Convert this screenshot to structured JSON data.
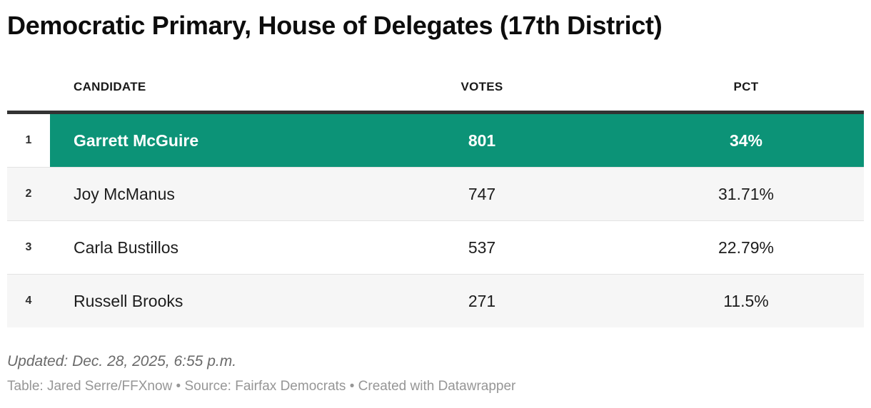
{
  "title": "Democratic Primary, House of Delegates (17th District)",
  "table": {
    "columns": [
      {
        "label": ""
      },
      {
        "label": "CANDIDATE"
      },
      {
        "label": "VOTES"
      },
      {
        "label": "PCT"
      }
    ],
    "rows": [
      {
        "rank": "1",
        "candidate": "Garrett McGuire",
        "votes": "801",
        "pct": "34%",
        "highlight": true
      },
      {
        "rank": "2",
        "candidate": "Joy McManus",
        "votes": "747",
        "pct": "31.71%",
        "highlight": false
      },
      {
        "rank": "3",
        "candidate": "Carla Bustillos",
        "votes": "537",
        "pct": "22.79%",
        "highlight": false
      },
      {
        "rank": "4",
        "candidate": "Russell Brooks",
        "votes": "271",
        "pct": "11.5%",
        "highlight": false
      }
    ]
  },
  "footer": {
    "updated": "Updated: Dec. 28, 2025, 6:55 p.m.",
    "attribution": "Table: Jared Serre/FFXnow • Source: Fairfax Democrats • Created with Datawrapper"
  },
  "colors": {
    "highlight": "#0c9377",
    "header_border": "#333333",
    "stripe": "#f6f6f6",
    "divider": "#e3e3e3",
    "title_text": "#0d0d0d",
    "body_text": "#1d1d1d",
    "updated_text": "#6a6a6a",
    "attribution_text": "#969696"
  },
  "chart_data": {
    "type": "table",
    "title": "Democratic Primary, House of Delegates (17th District)",
    "columns": [
      "CANDIDATE",
      "VOTES",
      "PCT"
    ],
    "rows": [
      [
        "Garrett McGuire",
        801,
        "34%"
      ],
      [
        "Joy McManus",
        747,
        "31.71%"
      ],
      [
        "Carla Bustillos",
        537,
        "22.79%"
      ],
      [
        "Russell Brooks",
        271,
        "11.5%"
      ]
    ],
    "highlighted_row": "Garrett McGuire",
    "layout": {
      "rank_column": true,
      "header_rule": true,
      "zebra_striping": true
    }
  }
}
